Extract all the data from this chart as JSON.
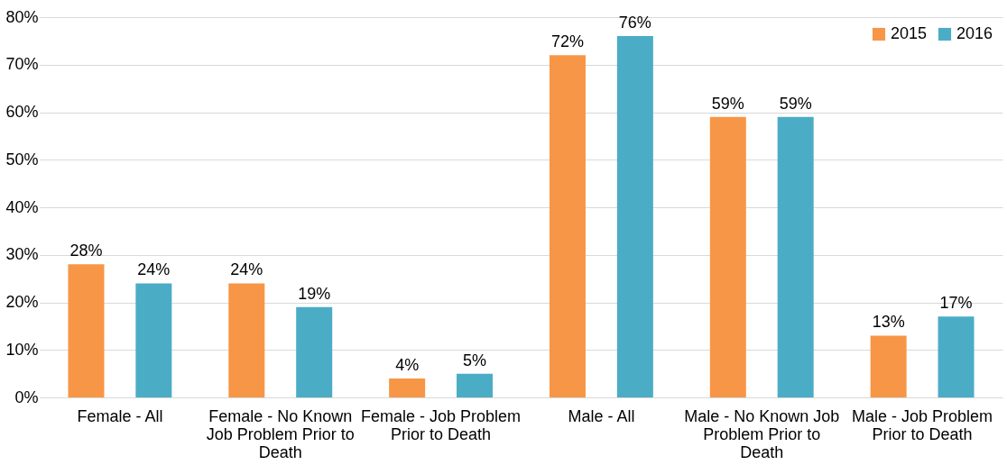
{
  "chart_data": {
    "type": "bar",
    "categories": [
      "Female - All",
      "Female - No Known Job Problem Prior to Death",
      "Female - Job Problem Prior to Death",
      "Male - All",
      "Male - No Known Job Problem Prior to Death",
      "Male - Job Problem Prior to Death"
    ],
    "series": [
      {
        "name": "2015",
        "color": "#f79646",
        "values": [
          28,
          24,
          4,
          72,
          59,
          13
        ],
        "value_labels": [
          "28%",
          "24%",
          "4%",
          "72%",
          "59%",
          "13%"
        ]
      },
      {
        "name": "2016",
        "color": "#4bacc6",
        "values": [
          24,
          19,
          5,
          76,
          59,
          17
        ],
        "value_labels": [
          "24%",
          "19%",
          "5%",
          "76%",
          "59%",
          "17%"
        ]
      }
    ],
    "ylim": [
      0,
      80
    ],
    "yticks": [
      {
        "value": 0,
        "label": "0%"
      },
      {
        "value": 10,
        "label": "10%"
      },
      {
        "value": 20,
        "label": "20%"
      },
      {
        "value": 30,
        "label": "30%"
      },
      {
        "value": 40,
        "label": "40%"
      },
      {
        "value": 50,
        "label": "50%"
      },
      {
        "value": 60,
        "label": "60%"
      },
      {
        "value": 70,
        "label": "70%"
      },
      {
        "value": 80,
        "label": "80%"
      }
    ],
    "grid": "y",
    "legend": "top right"
  }
}
